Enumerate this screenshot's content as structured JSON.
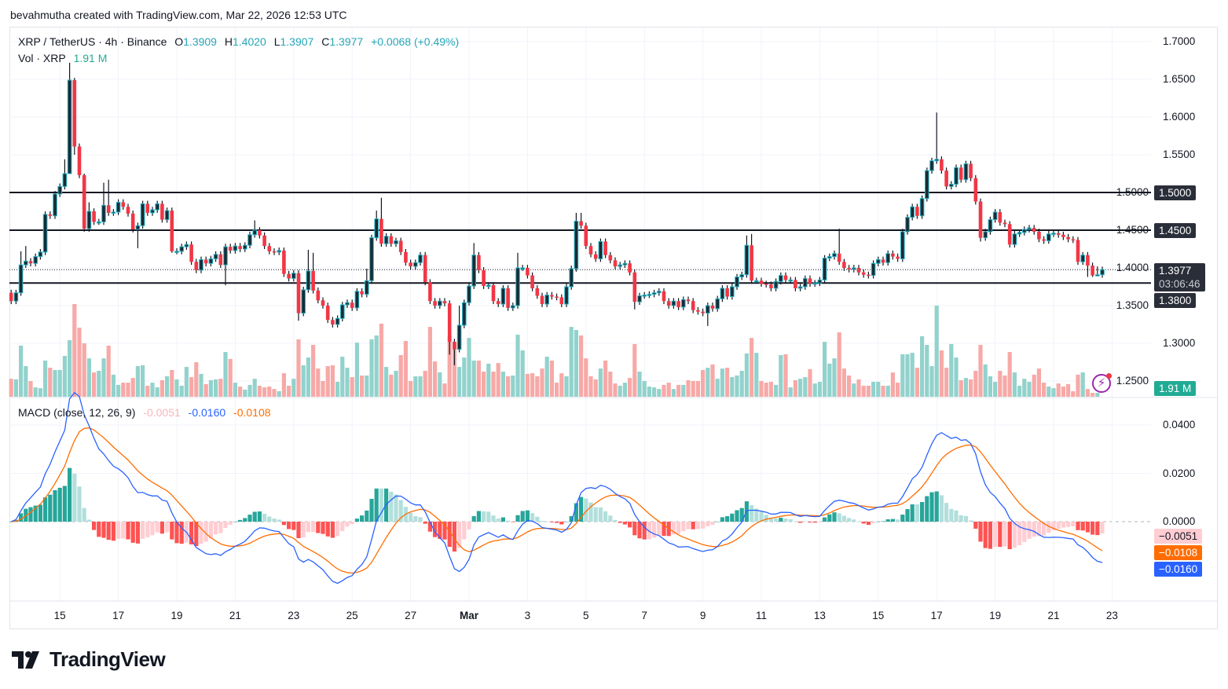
{
  "attribution": "bevahmutha created with TradingView.com, Mar 22, 2026 12:53 UTC",
  "header": {
    "symbol": "XRP / TetherUS · 4h · Binance",
    "o_label": "O",
    "o": "1.3909",
    "h_label": "H",
    "h": "1.4020",
    "l_label": "L",
    "l": "1.3907",
    "c_label": "C",
    "c": "1.3977",
    "change": "+0.0068 (+0.49%)",
    "vol_label": "Vol · XRP",
    "vol_value": "1.91 M"
  },
  "price_axis": {
    "ticks": [
      "1.7000",
      "1.6500",
      "1.6000",
      "1.5500",
      "1.5000",
      "1.4500",
      "1.4000",
      "1.3500",
      "1.3000",
      "1.2500"
    ],
    "levels": [
      {
        "price": 1.5,
        "label": "1.5000"
      },
      {
        "price": 1.45,
        "label": "1.4500"
      },
      {
        "price": 1.38,
        "label": "1.3800"
      }
    ],
    "current_price": "1.3977",
    "countdown": "03:06:46",
    "volume_tag": "1.91 M"
  },
  "macd": {
    "title": "MACD (close, 12, 26, 9)",
    "hist_value": "-0.0051",
    "macd_value": "-0.0160",
    "signal_value": "-0.0108",
    "axis_ticks": [
      "0.0400",
      "0.0200",
      "0.0000"
    ],
    "tags": [
      "−0.0051",
      "−0.0108",
      "−0.0160"
    ]
  },
  "time_axis": [
    "15",
    "17",
    "19",
    "21",
    "23",
    "25",
    "27",
    "Mar",
    "3",
    "5",
    "7",
    "9",
    "11",
    "13",
    "15",
    "17",
    "19",
    "21",
    "23"
  ],
  "colors": {
    "up_body": "#1c2a33",
    "up_border": "#22b5c8",
    "down": "#f23645",
    "vol_up": "#92d2cc",
    "vol_down": "#f7a9a7",
    "macd": "#2962ff",
    "signal": "#ff6d00",
    "hist_up_strong": "#26a69a",
    "hist_up_weak": "#b2dfdb",
    "hist_down_strong": "#ff5252",
    "hist_down_weak": "#ffcdd2"
  },
  "logo": "TradingView",
  "chart_data": {
    "type": "candlestick",
    "interval": "4h",
    "first_open": 1.367,
    "close": [
      1.356,
      1.367,
      1.404,
      1.409,
      1.406,
      1.415,
      1.421,
      1.471,
      1.469,
      1.498,
      1.508,
      1.525,
      1.649,
      1.561,
      1.523,
      1.452,
      1.475,
      1.461,
      1.461,
      1.483,
      1.473,
      1.474,
      1.487,
      1.481,
      1.472,
      1.451,
      1.456,
      1.485,
      1.473,
      1.477,
      1.485,
      1.464,
      1.476,
      1.422,
      1.422,
      1.428,
      1.431,
      1.408,
      1.397,
      1.411,
      1.406,
      1.412,
      1.418,
      1.404,
      1.428,
      1.423,
      1.429,
      1.425,
      1.43,
      1.444,
      1.45,
      1.443,
      1.429,
      1.422,
      1.421,
      1.423,
      1.392,
      1.386,
      1.393,
      1.34,
      1.371,
      1.396,
      1.37,
      1.357,
      1.35,
      1.331,
      1.325,
      1.333,
      1.351,
      1.354,
      1.347,
      1.369,
      1.365,
      1.383,
      1.44,
      1.465,
      1.432,
      1.442,
      1.432,
      1.436,
      1.421,
      1.407,
      1.402,
      1.407,
      1.417,
      1.381,
      1.356,
      1.35,
      1.356,
      1.353,
      1.302,
      1.292,
      1.324,
      1.354,
      1.376,
      1.417,
      1.397,
      1.376,
      1.377,
      1.356,
      1.352,
      1.373,
      1.347,
      1.35,
      1.4,
      1.4,
      1.39,
      1.373,
      1.363,
      1.352,
      1.364,
      1.362,
      1.361,
      1.352,
      1.375,
      1.399,
      1.462,
      1.456,
      1.429,
      1.418,
      1.412,
      1.435,
      1.417,
      1.41,
      1.402,
      1.404,
      1.406,
      1.394,
      1.355,
      1.363,
      1.364,
      1.365,
      1.367,
      1.369,
      1.356,
      1.35,
      1.356,
      1.348,
      1.358,
      1.356,
      1.344,
      1.342,
      1.34,
      1.35,
      1.346,
      1.359,
      1.373,
      1.362,
      1.375,
      1.388,
      1.391,
      1.43,
      1.383,
      1.383,
      1.379,
      1.378,
      1.373,
      1.382,
      1.39,
      1.384,
      1.384,
      1.373,
      1.375,
      1.386,
      1.379,
      1.38,
      1.384,
      1.413,
      1.415,
      1.419,
      1.408,
      1.4,
      1.398,
      1.4,
      1.394,
      1.391,
      1.39,
      1.406,
      1.411,
      1.407,
      1.419,
      1.415,
      1.412,
      1.448,
      1.467,
      1.481,
      1.469,
      1.492,
      1.529,
      1.542,
      1.544,
      1.529,
      1.508,
      1.511,
      1.533,
      1.517,
      1.538,
      1.519,
      1.488,
      1.44,
      1.448,
      1.464,
      1.474,
      1.46,
      1.458,
      1.431,
      1.445,
      1.447,
      1.451,
      1.453,
      1.448,
      1.438,
      1.436,
      1.445,
      1.446,
      1.444,
      1.441,
      1.438,
      1.437,
      1.408,
      1.417,
      1.403,
      1.39,
      1.3909,
      1.3977
    ],
    "wick_highs": {
      "2": 1.422,
      "3": 1.429,
      "11": 1.544,
      "12": 1.672,
      "13": 1.652,
      "15": 1.525,
      "16": 1.487,
      "19": 1.513,
      "20": 1.517,
      "50": 1.463,
      "61": 1.424,
      "62": 1.42,
      "73": 1.399,
      "75": 1.476,
      "76": 1.493,
      "92": 1.35,
      "95": 1.433,
      "104": 1.42,
      "116": 1.473,
      "117": 1.473,
      "151": 1.443,
      "152": 1.445,
      "170": 1.452,
      "190": 1.606,
      "223": 1.402
    },
    "wick_lows": {
      "12": 1.525,
      "13": 1.55,
      "15": 1.448,
      "26": 1.426,
      "33": 1.42,
      "44": 1.377,
      "59": 1.33,
      "90": 1.285,
      "91": 1.271,
      "128": 1.345,
      "143": 1.323,
      "199": 1.435,
      "221": 1.388,
      "222": 1.388,
      "223": 1.3907
    },
    "volume_m": [
      8.8,
      8.5,
      25,
      15,
      7.7,
      4.6,
      4.2,
      17.7,
      14.2,
      13.1,
      13.1,
      20,
      27.7,
      45.4,
      33.8,
      26.2,
      18.8,
      11.9,
      12.7,
      18.8,
      25,
      10.8,
      5.8,
      6.9,
      6.9,
      9.2,
      15,
      15.4,
      5.4,
      6.9,
      4.6,
      8.1,
      10,
      13.1,
      8.5,
      5.4,
      14.6,
      9.6,
      16.9,
      11.2,
      6.2,
      8.1,
      8.5,
      8.8,
      21.9,
      18.5,
      6.9,
      5,
      3.5,
      5.8,
      8.8,
      5.4,
      4.6,
      5,
      3.8,
      2.7,
      11.5,
      5.4,
      8.8,
      28.1,
      15.4,
      19.2,
      25.4,
      13.8,
      7.7,
      15,
      15.4,
      7.3,
      19.6,
      14.2,
      9.6,
      26.5,
      10.4,
      10.4,
      28.1,
      30,
      35.8,
      14.6,
      10.8,
      12.7,
      20.4,
      27.3,
      7.7,
      10,
      10,
      12.7,
      34.2,
      17.3,
      11.9,
      6.5,
      30,
      26.9,
      14.6,
      19.2,
      28.8,
      17.7,
      17.7,
      12.3,
      16.2,
      12.3,
      16.5,
      12.3,
      10,
      10.4,
      30.4,
      22.7,
      11.2,
      11.5,
      10,
      13.8,
      19.6,
      17.7,
      6.9,
      11.5,
      10,
      34.2,
      32.7,
      30,
      18.8,
      10,
      8.5,
      13.8,
      17.7,
      12.3,
      6.5,
      5.4,
      6.9,
      9.2,
      25.8,
      12.3,
      7.7,
      5,
      4.6,
      3.8,
      5.8,
      6.9,
      3.8,
      5.8,
      5.8,
      8.1,
      7.7,
      7.7,
      13.1,
      14.2,
      15.8,
      8.8,
      13.8,
      14.2,
      9.6,
      10.4,
      12.7,
      21.2,
      28.8,
      21.5,
      7.7,
      6.9,
      7.3,
      5.8,
      20.4,
      20.8,
      4.6,
      8.1,
      8.8,
      9.6,
      13.5,
      6.5,
      7.3,
      26.9,
      16.2,
      18.8,
      31.5,
      13.8,
      10.4,
      6.5,
      8.5,
      5.4,
      5.4,
      7.3,
      7.3,
      5.4,
      5.4,
      11.9,
      6.9,
      20.8,
      20.8,
      21.5,
      14.2,
      29.6,
      25.4,
      15,
      44.6,
      22.7,
      14.2,
      25.8,
      19.2,
      8.1,
      9.2,
      8.5,
      12.7,
      25.4,
      15.8,
      10,
      7.3,
      12.7,
      10.4,
      21.9,
      11.9,
      5.4,
      8.8,
      7.3,
      10.8,
      13.8,
      6.9,
      5,
      4.2,
      6.5,
      5,
      6.2,
      2.7,
      10.8,
      11.9,
      3.8,
      1.9,
      1.91
    ],
    "ylim": [
      1.205,
      1.735
    ],
    "volume_unit": "M"
  }
}
